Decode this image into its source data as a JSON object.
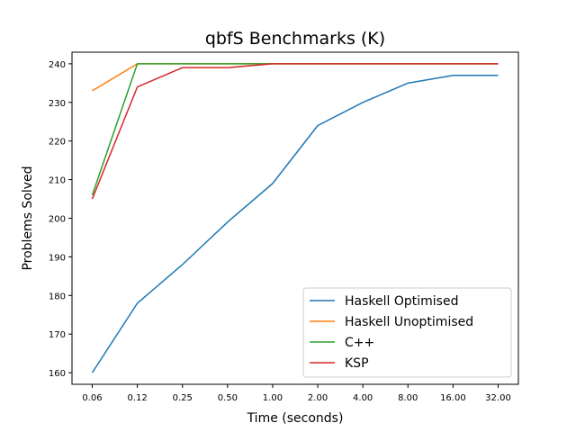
{
  "chart_data": {
    "type": "line",
    "title": "qbfS Benchmarks (K)",
    "xlabel": "Time (seconds)",
    "ylabel": "Problems Solved",
    "categories": [
      "0.06",
      "0.12",
      "0.25",
      "0.50",
      "1.00",
      "2.00",
      "4.00",
      "8.00",
      "16.00",
      "32.00"
    ],
    "ylim": [
      157,
      243
    ],
    "yticks": [
      160,
      170,
      180,
      190,
      200,
      210,
      220,
      230,
      240
    ],
    "grid": false,
    "legend_position": "lower-right",
    "series": [
      {
        "name": "Haskell Optimised",
        "color": "#1f77b4",
        "values": [
          160,
          178,
          188,
          199,
          209,
          224,
          230,
          235,
          237,
          237
        ]
      },
      {
        "name": "Haskell Unoptimised",
        "color": "#ff7f0e",
        "values": [
          233,
          240,
          240,
          240,
          240,
          240,
          240,
          240,
          240,
          240
        ]
      },
      {
        "name": "C++",
        "color": "#2ca02c",
        "values": [
          206,
          240,
          240,
          240,
          240,
          240,
          240,
          240,
          240,
          240
        ]
      },
      {
        "name": "KSP",
        "color": "#d62728",
        "values": [
          205,
          234,
          239,
          239,
          240,
          240,
          240,
          240,
          240,
          240
        ]
      }
    ]
  }
}
